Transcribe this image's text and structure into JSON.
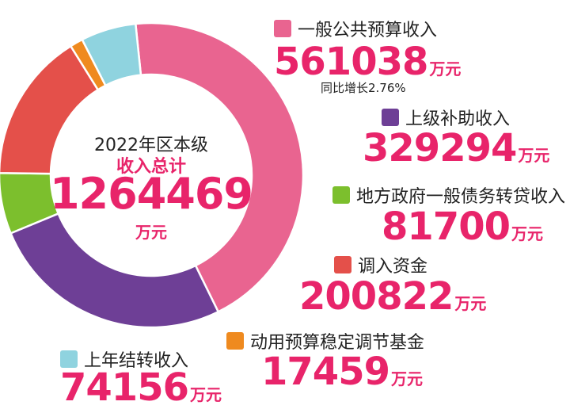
{
  "chart_data": {
    "type": "pie",
    "categories": [
      "一般公共预算收入",
      "上级补助收入",
      "地方政府一般债务转贷收入",
      "调入资金",
      "动用预算稳定调节基金",
      "上年结转收入"
    ],
    "values": [
      561038,
      329294,
      81700,
      200822,
      17459,
      74156
    ],
    "colors": [
      "#e96490",
      "#6e3f96",
      "#7cbf2d",
      "#e4504a",
      "#ef8a1f",
      "#8fd3df"
    ],
    "value_unit": "万元",
    "center": {
      "year_label": "2022年区本级",
      "label": "收入总计",
      "total": "1264469",
      "unit": "万元"
    },
    "notes": {
      "growth": "同比增长2.76%"
    },
    "labels": [
      {
        "name": "一般公共预算收入",
        "value": "561038",
        "unit": "万元"
      },
      {
        "name": "上级补助收入",
        "value": "329294",
        "unit": "万元"
      },
      {
        "name": "地方政府一般债务转贷收入",
        "value": "81700",
        "unit": "万元"
      },
      {
        "name": "调入资金",
        "value": "200822",
        "unit": "万元"
      },
      {
        "name": "动用预算稳定调节基金",
        "value": "17459",
        "unit": "万元"
      },
      {
        "name": "上年结转收入",
        "value": "74156",
        "unit": "万元"
      }
    ]
  }
}
